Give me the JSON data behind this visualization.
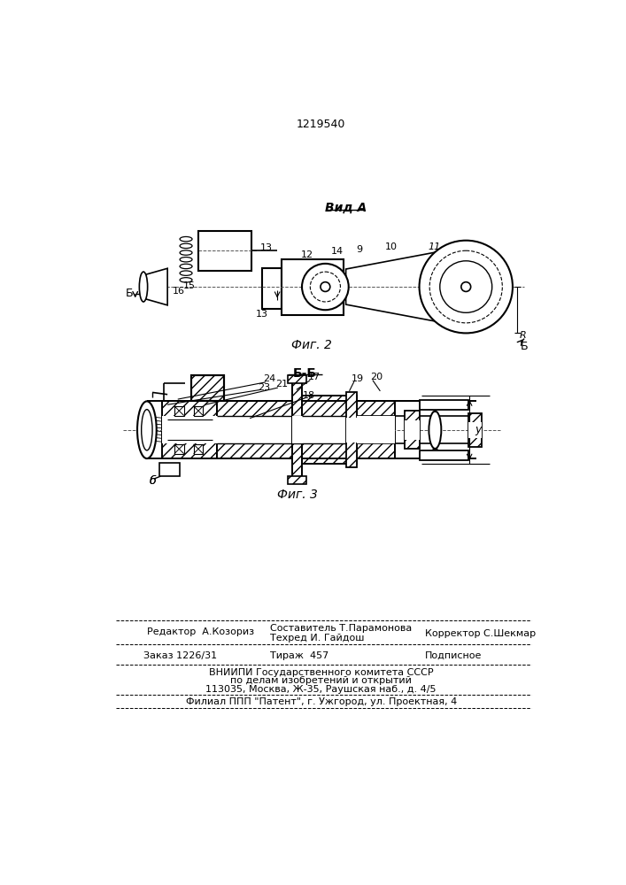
{
  "patent_number": "1219540",
  "fig2_label": "Вид А",
  "fig2_caption": "Фиг. 2",
  "fig3_section": "Б-Б",
  "fig3_caption": "Фиг. 3",
  "editor_line": "Редактор  А.Козориз",
  "composer_line": "Составитель Т.Парамонова",
  "techred_line": "Техред И. Гайдош",
  "corrector_line": "Корректор С.Шекмар",
  "order_line": "Заказ 1226/31",
  "print_run_line": "Тираж  457",
  "subscription_line": "Подписное",
  "vniipи_line1": "ВНИИПИ Государственного комитета СССР",
  "vniipи_line2": "по делам изобретений и открытий",
  "vniipи_line3": "113035, Москва, Ж-35, Раушская наб., д. 4/5",
  "filial_line": "Филиал ППП \"Патент\", г. Ужгород, ул. Проектная, 4",
  "bg_color": "#ffffff",
  "line_color": "#000000",
  "text_color": "#000000"
}
